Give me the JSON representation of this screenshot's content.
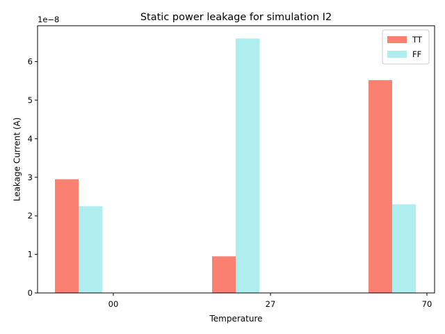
{
  "chart_data": {
    "type": "bar",
    "title": "Static power leakage for simulation I2",
    "xlabel": "Temperature",
    "ylabel": "Leakage Current (A)",
    "y_scale_label": "1e−8",
    "categories": [
      "00",
      "27",
      "70"
    ],
    "series": [
      {
        "name": "TT",
        "color": "#fa8072",
        "values": [
          2.95,
          0.95,
          5.52
        ]
      },
      {
        "name": "FF",
        "color": "#afeeee",
        "values": [
          2.25,
          6.6,
          2.3
        ]
      }
    ],
    "ylim": [
      0,
      6.93
    ],
    "yticks": [
      "0",
      "1",
      "2",
      "3",
      "4",
      "5",
      "6"
    ],
    "grid": false,
    "legend_position": "top-right"
  }
}
